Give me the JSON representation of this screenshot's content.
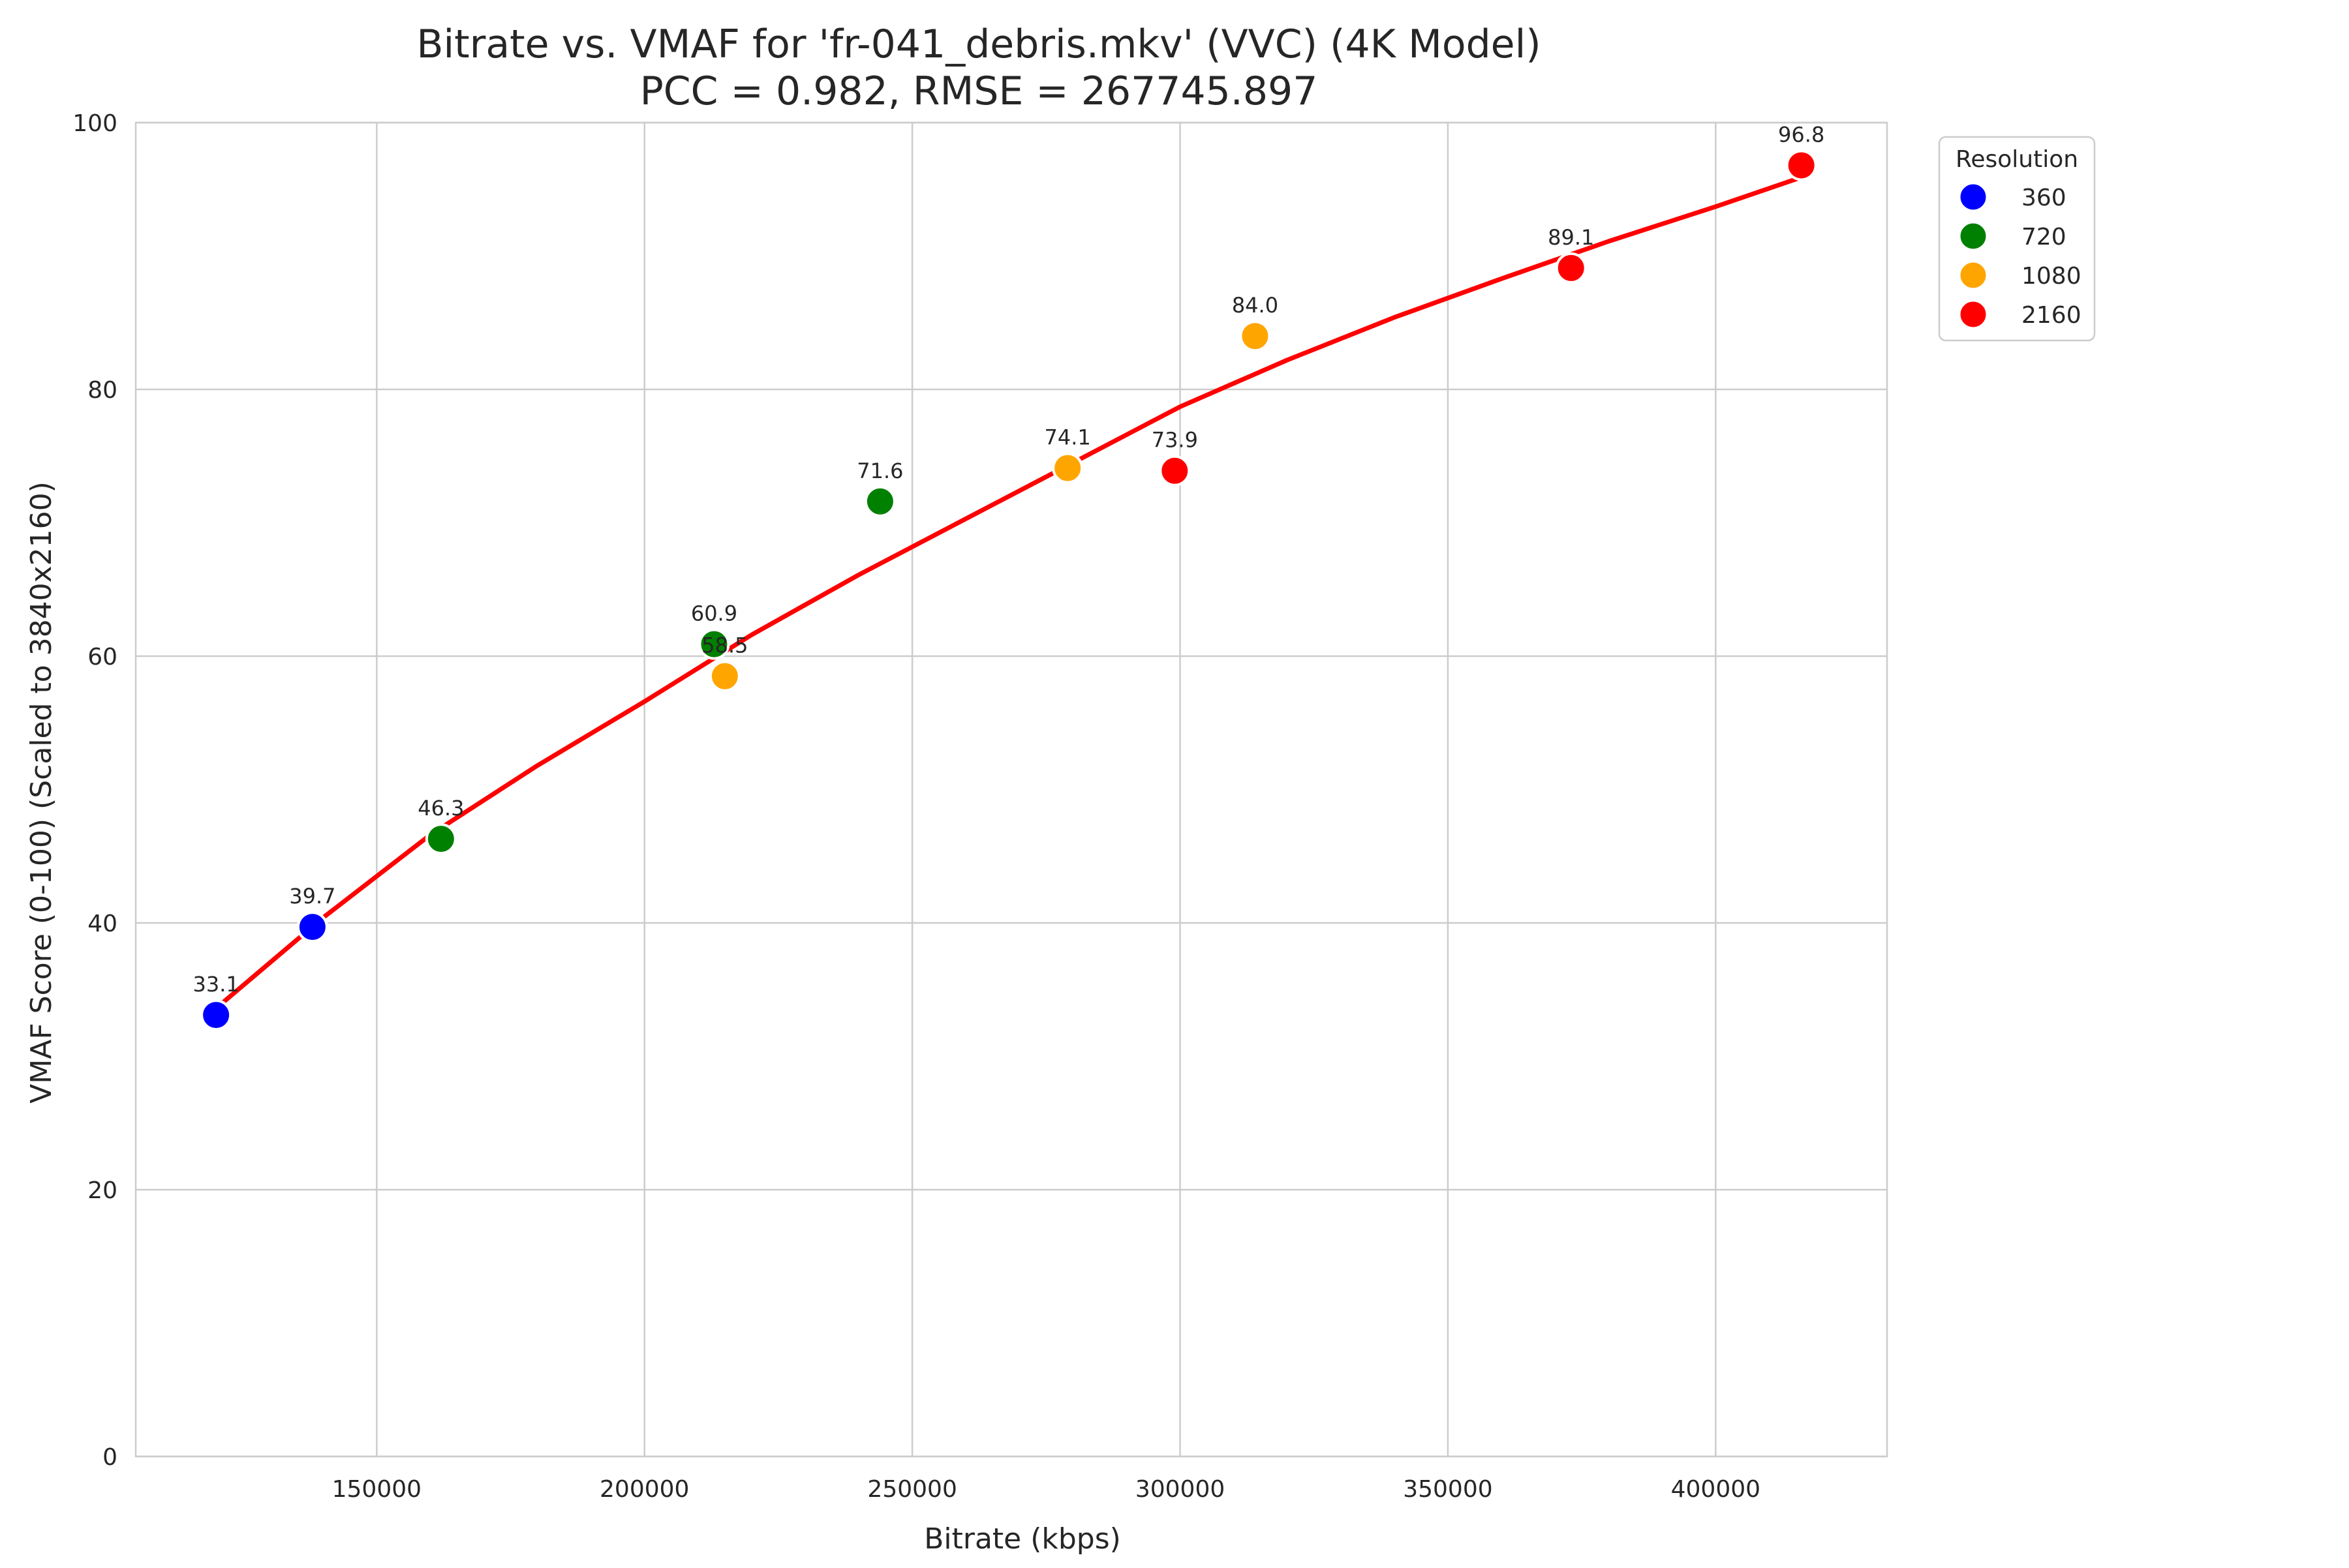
{
  "chart_data": {
    "type": "scatter",
    "title": "Bitrate vs. VMAF for 'fr-041_debris.mkv' (VVC) (4K Model)",
    "subtitle": "PCC = 0.982, RMSE = 267745.897",
    "xlabel": "Bitrate (kbps)",
    "ylabel": "VMAF Score (0-100) (Scaled to 3840x2160)",
    "xlim": [
      105000,
      432000
    ],
    "ylim": [
      0,
      100
    ],
    "x_ticks": [
      150000,
      200000,
      250000,
      300000,
      350000,
      400000
    ],
    "y_ticks": [
      0,
      20,
      40,
      60,
      80,
      100
    ],
    "grid": true,
    "legend": {
      "title": "Resolution",
      "placement": "outside-top-right",
      "entries": [
        {
          "label": "360",
          "color": "#0000ff"
        },
        {
          "label": "720",
          "color": "#008000"
        },
        {
          "label": "1080",
          "color": "#ffa500"
        },
        {
          "label": "2160",
          "color": "#ff0000"
        }
      ]
    },
    "series": [
      {
        "name": "360",
        "color": "#0000ff",
        "points": [
          {
            "x": 120000,
            "y": 33.1,
            "label": "33.1"
          },
          {
            "x": 138000,
            "y": 39.7,
            "label": "39.7"
          }
        ]
      },
      {
        "name": "720",
        "color": "#008000",
        "points": [
          {
            "x": 162000,
            "y": 46.3,
            "label": "46.3"
          },
          {
            "x": 213000,
            "y": 60.9,
            "label": "60.9"
          },
          {
            "x": 244000,
            "y": 71.6,
            "label": "71.6"
          }
        ]
      },
      {
        "name": "1080",
        "color": "#ffa500",
        "points": [
          {
            "x": 215000,
            "y": 58.5,
            "label": "58.5"
          },
          {
            "x": 279000,
            "y": 74.1,
            "label": "74.1"
          },
          {
            "x": 314000,
            "y": 84.0,
            "label": "84.0"
          }
        ]
      },
      {
        "name": "2160",
        "color": "#ff0000",
        "points": [
          {
            "x": 299000,
            "y": 73.9,
            "label": "73.9"
          },
          {
            "x": 373000,
            "y": 89.1,
            "label": "89.1"
          },
          {
            "x": 416000,
            "y": 96.8,
            "label": "96.8"
          }
        ]
      }
    ],
    "fit_curve": {
      "color": "#ff0000",
      "points": [
        {
          "x": 120000,
          "y": 33.6
        },
        {
          "x": 140000,
          "y": 40.4
        },
        {
          "x": 160000,
          "y": 46.6
        },
        {
          "x": 180000,
          "y": 51.8
        },
        {
          "x": 200000,
          "y": 56.6
        },
        {
          "x": 220000,
          "y": 61.6
        },
        {
          "x": 240000,
          "y": 66.1
        },
        {
          "x": 260000,
          "y": 70.3
        },
        {
          "x": 280000,
          "y": 74.5
        },
        {
          "x": 300000,
          "y": 78.7
        },
        {
          "x": 320000,
          "y": 82.2
        },
        {
          "x": 340000,
          "y": 85.4
        },
        {
          "x": 360000,
          "y": 88.3
        },
        {
          "x": 380000,
          "y": 91.1
        },
        {
          "x": 400000,
          "y": 93.7
        },
        {
          "x": 416000,
          "y": 95.9
        }
      ]
    }
  }
}
